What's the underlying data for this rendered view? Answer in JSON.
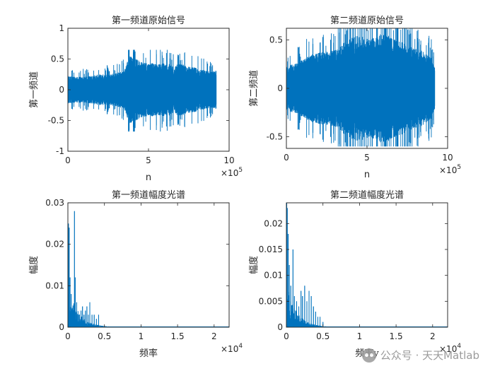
{
  "chart_data": [
    {
      "type": "line",
      "title": "第一频道原始信号",
      "xlabel": "n",
      "ylabel": "第一频道",
      "xlim": [
        0,
        1000000
      ],
      "ylim": [
        -1,
        1
      ],
      "x_exponent": "5",
      "xticks": [
        "0",
        "5",
        "10"
      ],
      "yticks": [
        "-1",
        "-0.5",
        "0",
        "0.5",
        "1"
      ],
      "signal_length": 920000,
      "envelope": {
        "x": [
          0,
          50000,
          100000,
          150000,
          200000,
          250000,
          300000,
          350000,
          380000,
          400000,
          450000,
          500000,
          550000,
          600000,
          650000,
          700000,
          750000,
          800000,
          850000,
          900000,
          920000
        ],
        "y": [
          0.22,
          0.2,
          0.2,
          0.22,
          0.24,
          0.24,
          0.26,
          0.3,
          0.55,
          0.5,
          0.45,
          0.42,
          0.4,
          0.42,
          0.38,
          0.4,
          0.36,
          0.34,
          0.3,
          0.28,
          0.3
        ]
      },
      "peak_max": 0.65,
      "peak_min": -0.68
    },
    {
      "type": "line",
      "title": "第二频道原始信号",
      "xlabel": "n",
      "ylabel": "第二频道",
      "xlim": [
        0,
        1000000
      ],
      "ylim": [
        -0.62,
        0.62
      ],
      "x_exponent": "5",
      "xticks": [
        "0",
        "5",
        "10"
      ],
      "yticks": [
        "-0.5",
        "0",
        "0.5"
      ],
      "signal_length": 920000,
      "envelope": {
        "x": [
          0,
          50000,
          100000,
          150000,
          200000,
          250000,
          300000,
          350000,
          400000,
          450000,
          500000,
          550000,
          600000,
          650000,
          700000,
          750000,
          800000,
          850000,
          900000,
          920000
        ],
        "y": [
          0.22,
          0.24,
          0.28,
          0.33,
          0.35,
          0.36,
          0.38,
          0.44,
          0.5,
          0.52,
          0.5,
          0.5,
          0.55,
          0.5,
          0.47,
          0.42,
          0.4,
          0.36,
          0.3,
          0.2
        ]
      },
      "peak_max": 0.62,
      "peak_min": -0.6
    },
    {
      "type": "line",
      "title": "第一频道幅度光谱",
      "xlabel": "频率",
      "ylabel": "幅度",
      "xlim": [
        0,
        22050
      ],
      "ylim": [
        0,
        0.03
      ],
      "x_exponent": "4",
      "xticks": [
        "0",
        "0.5",
        "1",
        "1.5",
        "2"
      ],
      "yticks": [
        "0",
        "0.01",
        "0.02",
        "0.03"
      ],
      "peaks": {
        "x": [
          80,
          180,
          300,
          450,
          600,
          900,
          1000,
          1200,
          1500,
          1800,
          2000,
          2200,
          2400,
          2600,
          2800,
          3000,
          3300,
          3600,
          3900,
          4200
        ],
        "y": [
          0.025,
          0.024,
          0.012,
          0.008,
          0.004,
          0.028,
          0.012,
          0.006,
          0.003,
          0.004,
          0.005,
          0.003,
          0.004,
          0.005,
          0.003,
          0.006,
          0.003,
          0.003,
          0.002,
          0.003
        ]
      }
    },
    {
      "type": "line",
      "title": "第二频道幅度光谱",
      "xlabel": "频率y",
      "ylabel": "幅度",
      "xlim": [
        0,
        22050
      ],
      "ylim": [
        0,
        0.024
      ],
      "x_exponent": "4",
      "xticks": [
        "0",
        "0.5",
        "1",
        "1.5",
        "2"
      ],
      "yticks": [
        "0",
        "0.005",
        "0.01",
        "0.015",
        "0.02"
      ],
      "peaks": {
        "x": [
          50,
          120,
          250,
          400,
          600,
          900,
          1100,
          1400,
          1700,
          2000,
          2200,
          2500,
          2800,
          3100,
          3400,
          3700,
          4000,
          4300,
          4600,
          5000
        ],
        "y": [
          0.024,
          0.023,
          0.018,
          0.012,
          0.008,
          0.015,
          0.006,
          0.005,
          0.004,
          0.007,
          0.006,
          0.008,
          0.005,
          0.007,
          0.006,
          0.004,
          0.003,
          0.002,
          0.002,
          0.001
        ]
      }
    }
  ],
  "watermark": {
    "text": "公众号 · 天天Matlab",
    "icon": "wechat-icon"
  },
  "colors": {
    "series": "#0072BD",
    "axes": "#262626",
    "background": "#ffffff"
  }
}
